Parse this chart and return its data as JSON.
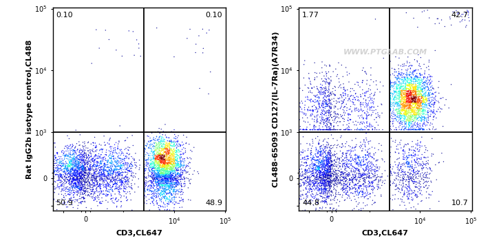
{
  "fig_width": 6.96,
  "fig_height": 3.56,
  "dpi": 100,
  "background_color": "#ffffff",
  "panels": [
    {
      "xlabel": "CD3,CL647",
      "ylabel": "Rat IgG2b isotype control,CL488",
      "quadrant_labels": [
        "0.10",
        "0.10",
        "50.9",
        "48.9"
      ],
      "xline": 2500,
      "yline": 1000
    },
    {
      "xlabel": "CD3,CL647",
      "ylabel": "CL488-65093 CD127(IL-7Ra)(A7R34)",
      "quadrant_labels": [
        "1.77",
        "42.7",
        "44.8",
        "10.7"
      ],
      "xline": 2500,
      "yline": 1000,
      "watermark": "WWW.PTGLAB.COM"
    }
  ],
  "tick_label_fontsize": 7,
  "axis_label_fontsize": 8,
  "quadrant_label_fontsize": 8
}
